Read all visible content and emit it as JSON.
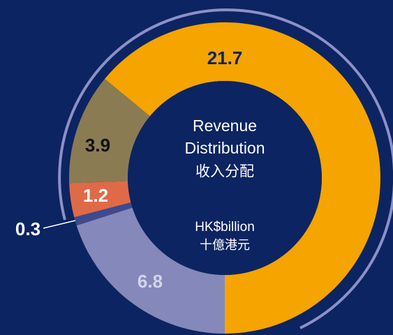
{
  "chart_data": {
    "type": "donut",
    "title": [
      "Revenue",
      "Distribution"
    ],
    "title_zh": "收入分配",
    "unit": "HK$billion",
    "unit_zh": "十億港元",
    "values": [
      6.8,
      0.3,
      1.2,
      3.9,
      21.7
    ],
    "colors": [
      "#8588ba",
      "#3e4a8e",
      "#df6a48",
      "#8a7b52",
      "#f5a400"
    ],
    "label_colors": [
      "#d3d4ec",
      "#ffffff",
      "#ffffff",
      "#111111",
      "#0c2461"
    ],
    "background": "#0c2461"
  }
}
